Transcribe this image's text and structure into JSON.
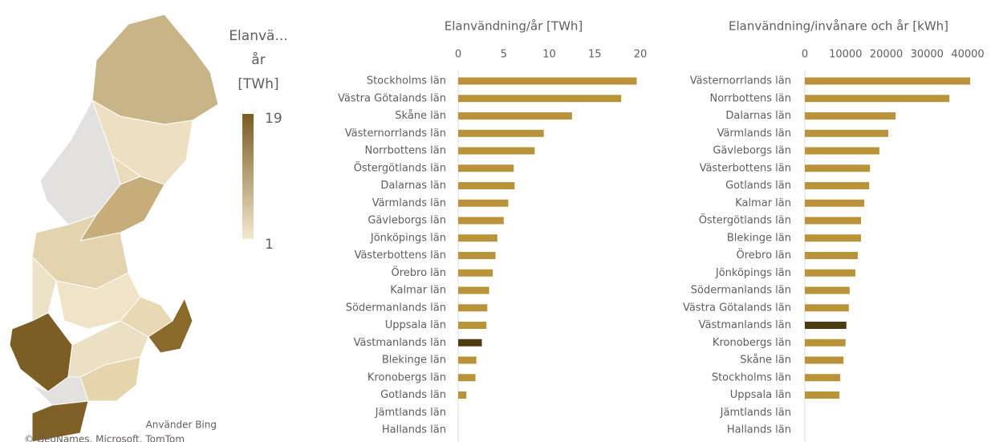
{
  "legend": {
    "title_lines": [
      "Elanvä...",
      "år",
      "[TWh]"
    ],
    "max": 19,
    "min": 1,
    "color_max": "#7a5c22",
    "color_min": "#f3e8cf"
  },
  "attribution": {
    "bing": "Använder Bing",
    "copyright": "© GeoNames, Microsoft, TomTom"
  },
  "chart_data": [
    {
      "type": "hbar",
      "title": "Elanvändning/år [TWh]",
      "categories": [
        "Stockholms län",
        "Västra Götalands län",
        "Skåne län",
        "Västernorrlands län",
        "Norrbottens län",
        "Östergötlands län",
        "Dalarnas län",
        "Värmlands län",
        "Gävleborgs län",
        "Jönköpings län",
        "Västerbottens län",
        "Örebro län",
        "Kalmar län",
        "Södermanlands län",
        "Uppsala län",
        "Västmanlands län",
        "Blekinge län",
        "Kronobergs län",
        "Gotlands län",
        "Jämtlands län",
        "Hallands län"
      ],
      "values": [
        19.6,
        17.9,
        12.5,
        9.4,
        8.4,
        6.1,
        6.2,
        5.5,
        5.0,
        4.3,
        4.1,
        3.8,
        3.4,
        3.2,
        3.1,
        2.6,
        2.0,
        1.9,
        0.9,
        null,
        null
      ],
      "colors": [
        "#b8933a",
        "#b8933a",
        "#b8933a",
        "#b8933a",
        "#b8933a",
        "#b8933a",
        "#b8933a",
        "#b8933a",
        "#b8933a",
        "#b8933a",
        "#b8933a",
        "#b8933a",
        "#b8933a",
        "#b8933a",
        "#b8933a",
        "#4d3b14",
        "#b8933a",
        "#b8933a",
        "#b8933a",
        "#b8933a",
        "#b8933a"
      ],
      "xlim": [
        0,
        20
      ],
      "xticks": [
        0,
        5,
        10,
        15,
        20
      ]
    },
    {
      "type": "hbar",
      "title": "Elanvändning/invånare och år [kWh]",
      "categories": [
        "Västernorrlands län",
        "Norrbottens län",
        "Dalarnas län",
        "Värmlands län",
        "Gävleborgs län",
        "Västerbottens län",
        "Gotlands län",
        "Kalmar län",
        "Östergötlands län",
        "Blekinge län",
        "Örebro län",
        "Jönköpings län",
        "Södermanlands län",
        "Västra Götalands län",
        "Västmanlands län",
        "Kronobergs län",
        "Skåne län",
        "Stockholms län",
        "Uppsala län",
        "Jämtlands län",
        "Hallands län"
      ],
      "values": [
        40600,
        35500,
        22300,
        20500,
        18300,
        16000,
        15800,
        14600,
        13800,
        13800,
        13000,
        12400,
        11000,
        10800,
        10200,
        10000,
        9500,
        8700,
        8500,
        null,
        null
      ],
      "colors": [
        "#b8933a",
        "#b8933a",
        "#b8933a",
        "#b8933a",
        "#b8933a",
        "#b8933a",
        "#b8933a",
        "#b8933a",
        "#b8933a",
        "#b8933a",
        "#b8933a",
        "#b8933a",
        "#b8933a",
        "#b8933a",
        "#4d3b14",
        "#b8933a",
        "#b8933a",
        "#b8933a",
        "#b8933a",
        "#b8933a",
        "#b8933a"
      ],
      "xlim": [
        0,
        40000
      ],
      "xticks": [
        0,
        10000,
        20000,
        30000,
        40000
      ]
    }
  ]
}
